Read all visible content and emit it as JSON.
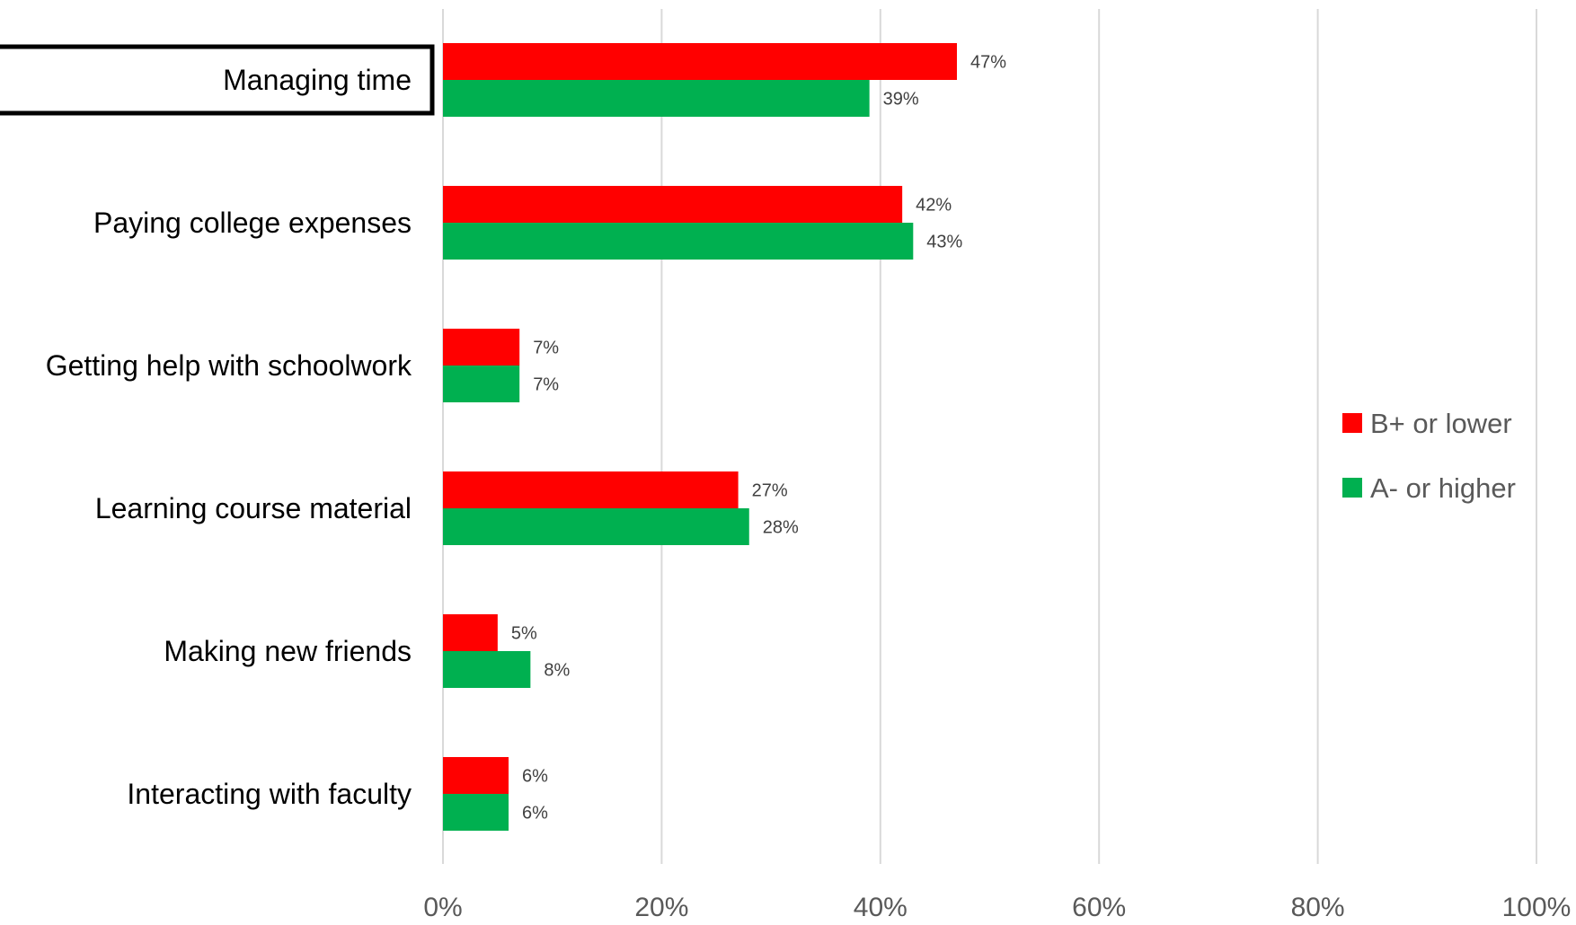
{
  "chart_data": {
    "type": "bar",
    "orientation": "horizontal",
    "categories": [
      "Managing time",
      "Paying college expenses",
      "Getting help with schoolwork",
      "Learning course material",
      "Making new friends",
      "Interacting with faculty"
    ],
    "highlighted_category": "Managing time",
    "series": [
      {
        "name": "B+ or lower",
        "color": "#ff0000",
        "values": [
          47,
          42,
          7,
          27,
          5,
          6
        ]
      },
      {
        "name": "A- or higher",
        "color": "#00b050",
        "values": [
          39,
          43,
          7,
          28,
          8,
          6
        ]
      }
    ],
    "value_suffix": "%",
    "xlim": [
      0,
      100
    ],
    "xticks": [
      0,
      20,
      40,
      60,
      80,
      100
    ],
    "xtick_labels": [
      "0%",
      "20%",
      "40%",
      "60%",
      "80%",
      "100%"
    ],
    "grid": "vertical",
    "legend_position": "right",
    "title": "",
    "xlabel": "",
    "ylabel": ""
  }
}
